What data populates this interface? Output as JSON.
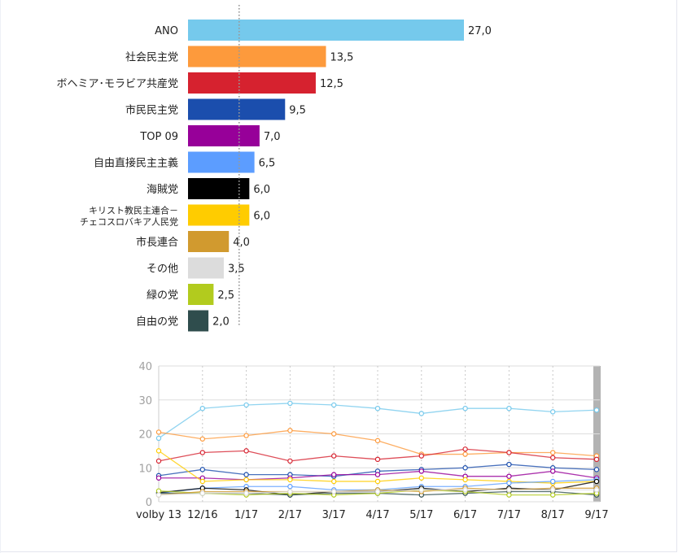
{
  "chart_data": [
    {
      "type": "bar",
      "orientation": "horizontal",
      "categories": [
        "ANO",
        "社会民主党",
        "ボヘミア･モラビア共産党",
        "市民民主党",
        "TOP 09",
        "自由直接民主主義",
        "海賊党",
        "キリスト教民主連合－\nチェコスロバキア人民党",
        "市長連合",
        "その他",
        "緑の党",
        "自由の党"
      ],
      "values": [
        27.0,
        13.5,
        12.5,
        9.5,
        7.0,
        6.5,
        6.0,
        6.0,
        4.0,
        3.5,
        2.5,
        2.0
      ],
      "value_labels": [
        "27,0",
        "13,5",
        "12,5",
        "9,5",
        "7,0",
        "6,5",
        "6,0",
        "6,0",
        "4,0",
        "3,5",
        "2,5",
        "2,0"
      ],
      "colors": [
        "#75c9ec",
        "#fd9a3c",
        "#d6222f",
        "#1b4ead",
        "#970099",
        "#5c9dff",
        "#000000",
        "#ffcc00",
        "#d19a2f",
        "#dcdcdc",
        "#b2cb1e",
        "#2f4d4d"
      ],
      "reference_line": 5,
      "xlim": [
        0,
        27
      ]
    },
    {
      "type": "line",
      "categories": [
        "volby 13",
        "12/16",
        "1/17",
        "2/17",
        "3/17",
        "4/17",
        "5/17",
        "6/17",
        "7/17",
        "8/17",
        "9/17"
      ],
      "ylim": [
        0,
        40
      ],
      "yticks": [
        "0",
        "10",
        "20",
        "30",
        "40"
      ],
      "grid": true,
      "highlight_category": "9/17",
      "series": [
        {
          "color": "#75c9ec",
          "values": [
            18.7,
            27.5,
            28.5,
            29.0,
            28.5,
            27.5,
            26.0,
            27.5,
            27.5,
            26.5,
            27.0
          ]
        },
        {
          "color": "#fd9a3c",
          "values": [
            20.5,
            18.5,
            19.5,
            21.0,
            20.0,
            18.0,
            14.0,
            14.0,
            14.5,
            14.5,
            13.5
          ]
        },
        {
          "color": "#d6222f",
          "values": [
            12.0,
            14.5,
            15.0,
            12.0,
            13.5,
            12.5,
            13.5,
            15.5,
            14.5,
            13.0,
            12.5
          ]
        },
        {
          "color": "#1b4ead",
          "values": [
            7.7,
            9.5,
            8.0,
            8.0,
            7.5,
            9.0,
            9.5,
            10.0,
            11.0,
            10.0,
            9.5
          ]
        },
        {
          "color": "#970099",
          "values": [
            7.0,
            7.0,
            6.5,
            7.0,
            8.0,
            8.0,
            9.0,
            7.5,
            7.5,
            9.0,
            7.0
          ]
        },
        {
          "color": "#ffcc00",
          "values": [
            15.0,
            6.0,
            6.5,
            6.5,
            6.0,
            6.0,
            7.0,
            6.5,
            6.0,
            5.5,
            6.0
          ]
        },
        {
          "color": "#5c9dff",
          "values": [
            2.5,
            4.0,
            4.5,
            4.5,
            3.5,
            3.5,
            4.5,
            4.5,
            5.5,
            6.0,
            6.5
          ]
        },
        {
          "color": "#000000",
          "values": [
            2.7,
            4.0,
            3.5,
            2.0,
            3.0,
            3.0,
            4.0,
            3.0,
            4.0,
            3.5,
            6.0
          ]
        },
        {
          "color": "#2f4d4d",
          "values": [
            2.5,
            2.5,
            2.5,
            2.0,
            2.5,
            2.5,
            2.0,
            2.5,
            3.0,
            3.0,
            2.0
          ]
        },
        {
          "color": "#b2cb1e",
          "values": [
            3.2,
            2.5,
            2.0,
            2.5,
            2.0,
            2.5,
            3.5,
            3.0,
            2.0,
            2.0,
            2.5
          ]
        },
        {
          "color": "#d19a2f",
          "values": [
            2.0,
            3.0,
            3.0,
            3.0,
            3.0,
            3.5,
            3.0,
            4.0,
            3.5,
            4.0,
            4.0
          ]
        },
        {
          "color": "#dcdcdc",
          "values": [
            2.0,
            2.5,
            2.5,
            3.0,
            3.0,
            3.0,
            3.5,
            3.5,
            3.5,
            3.5,
            3.5
          ]
        }
      ]
    }
  ]
}
